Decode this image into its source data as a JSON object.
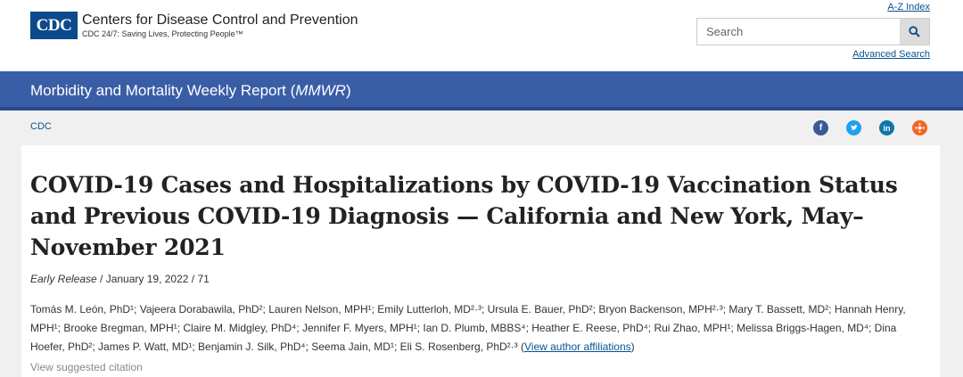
{
  "header": {
    "logo_text": "CDC",
    "org_name": "Centers for Disease Control and Prevention",
    "tagline": "CDC 24/7: Saving Lives, Protecting People™",
    "az_index": "A-Z Index",
    "search_placeholder": "Search",
    "advanced_search": "Advanced Search"
  },
  "banner": {
    "title_prefix": "Morbidity and Mortality Weekly Report (",
    "title_em": "MMWR",
    "title_suffix": ")"
  },
  "breadcrumb": "CDC",
  "social": {
    "icons": [
      "facebook-icon",
      "twitter-icon",
      "linkedin-icon",
      "syndicate-icon"
    ],
    "colors": [
      "#3b5998",
      "#1da1f2",
      "#0e76a8",
      "#f26522"
    ]
  },
  "article": {
    "title": "COVID-19 Cases and Hospitalizations by COVID-19 Vaccination Status and Previous COVID-19 Diagnosis — California and New York, May–November 2021",
    "release_label": "Early Release",
    "release_info": " / January 19, 2022 / 71",
    "authors_text": "Tomás M. León, PhD¹; Vajeera Dorabawila, PhD²; Lauren Nelson, MPH¹; Emily Lutterloh, MD²·³; Ursula E. Bauer, PhD²; Bryon Backenson, MPH²·³; Mary T. Bassett, MD²; Hannah Henry, MPH¹; Brooke Bregman, MPH¹; Claire M. Midgley, PhD⁴; Jennifer F. Myers, MPH¹; Ian D. Plumb, MBBS⁴; Heather E. Reese, PhD⁴; Rui Zhao, MPH¹; Melissa Briggs-Hagen, MD⁴; Dina Hoefer, PhD²; James P. Watt, MD¹; Benjamin J. Silk, PhD⁴; Seema Jain, MD¹; Eli S. Rosenberg, PhD²·³ (",
    "affiliations_link": "View author affiliations",
    "authors_end": ")",
    "cut_text": "View suggested citation"
  },
  "colors": {
    "brand_blue": "#0b4a8c",
    "banner_blue": "#3a5ea6",
    "link_blue": "#075290"
  }
}
